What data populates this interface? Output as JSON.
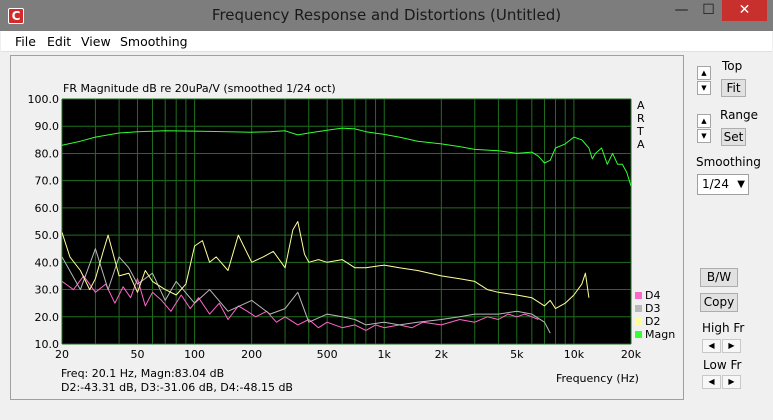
{
  "window": {
    "title": "Frequency Response and Distortions (Untitled)",
    "app_icon_glyph": "C",
    "controls": {
      "minimize": "—",
      "maximize": "☐",
      "close": "✕"
    }
  },
  "menu": {
    "file": "File",
    "edit": "Edit",
    "view": "View",
    "smoothing": "Smoothing"
  },
  "sidebar": {
    "top_label": "Top",
    "fit_button": "Fit",
    "range_label": "Range",
    "set_button": "Set",
    "smoothing_label": "Smoothing",
    "smoothing_value": "1/24",
    "bw_button": "B/W",
    "copy_button": "Copy",
    "high_fr_label": "High Fr",
    "low_fr_label": "Low Fr"
  },
  "plot": {
    "arta_watermark": [
      "A",
      "R",
      "T",
      "A"
    ],
    "readout": {
      "line1": "Freq: 20.1 Hz, Magn:83.04 dB",
      "line2": "D2:-43.31 dB, D3:-31.06 dB, D4:-48.15 dB"
    }
  },
  "chart_data": {
    "type": "line",
    "title": "FR Magnitude dB re 20uPa/V (smoothed 1/24 oct)",
    "xlabel": "Frequency (Hz)",
    "ylabel": "",
    "x_scale": "log",
    "xlim": [
      20,
      20000
    ],
    "ylim": [
      10,
      100
    ],
    "y_ticks": [
      "100.0",
      "90.0",
      "80.0",
      "70.0",
      "60.0",
      "50.0",
      "40.0",
      "30.0",
      "20.0",
      "10.0"
    ],
    "x_ticks": [
      {
        "value": 20,
        "label": "20"
      },
      {
        "value": 50,
        "label": "50"
      },
      {
        "value": 100,
        "label": "100"
      },
      {
        "value": 200,
        "label": "200"
      },
      {
        "value": 500,
        "label": "500"
      },
      {
        "value": 1000,
        "label": "1k"
      },
      {
        "value": 2000,
        "label": "2k"
      },
      {
        "value": 5000,
        "label": "5k"
      },
      {
        "value": 10000,
        "label": "10k"
      },
      {
        "value": 20000,
        "label": "20k"
      }
    ],
    "grid": true,
    "background": "#000000",
    "grid_color": "#1f6e1f",
    "legend_position": "right",
    "series": [
      {
        "name": "Magn",
        "color": "#33ff33",
        "x": [
          20,
          25,
          30,
          40,
          50,
          70,
          100,
          150,
          200,
          250,
          300,
          350,
          400,
          500,
          600,
          700,
          800,
          1000,
          1200,
          1500,
          2000,
          2500,
          3000,
          4000,
          5000,
          6000,
          6500,
          7000,
          7500,
          8000,
          9000,
          10000,
          11000,
          12000,
          12500,
          13000,
          14000,
          15000,
          16000,
          17000,
          18000,
          19000,
          20000
        ],
        "y": [
          83.0,
          84.5,
          86.0,
          87.5,
          88.0,
          88.3,
          88.2,
          88.0,
          87.8,
          88.0,
          88.3,
          86.8,
          87.5,
          88.5,
          89.3,
          89.0,
          88.0,
          87.0,
          86.0,
          84.5,
          83.5,
          82.5,
          81.5,
          81.0,
          80.0,
          80.5,
          79.0,
          76.5,
          77.5,
          82.0,
          83.5,
          86.0,
          85.0,
          82.0,
          78.0,
          80.0,
          82.0,
          76.0,
          80.0,
          76.0,
          76.0,
          73.0,
          68.0
        ]
      },
      {
        "name": "D2",
        "color": "#ffff99",
        "x": [
          20,
          22,
          25,
          28,
          30,
          33,
          35,
          40,
          45,
          50,
          55,
          60,
          70,
          80,
          90,
          100,
          110,
          120,
          130,
          150,
          170,
          200,
          230,
          260,
          300,
          330,
          350,
          380,
          400,
          450,
          500,
          600,
          700,
          800,
          1000,
          1200,
          1500,
          2000,
          2500,
          3000,
          3500,
          4000,
          5000,
          6000,
          7000,
          7500,
          8000,
          9000,
          10000,
          11000,
          11500,
          12000
        ],
        "y": [
          51,
          42,
          37,
          30,
          34,
          44,
          50,
          35,
          36,
          29,
          37,
          33,
          30,
          28,
          32,
          46,
          48,
          40,
          42,
          37,
          50,
          40,
          42,
          44,
          38,
          52,
          55,
          43,
          40,
          41,
          40,
          41,
          38,
          38,
          39,
          38,
          37,
          35,
          34,
          33,
          30,
          29,
          28,
          27,
          24,
          26,
          23,
          25,
          28,
          32,
          36,
          27
        ]
      },
      {
        "name": "D3",
        "color": "#b8b8b8",
        "x": [
          20,
          25,
          30,
          35,
          40,
          45,
          50,
          60,
          70,
          80,
          100,
          120,
          150,
          200,
          250,
          300,
          350,
          400,
          500,
          600,
          700,
          800,
          1000,
          1200,
          1500,
          2000,
          2500,
          3000,
          4000,
          5000,
          6000,
          7000,
          7500
        ],
        "y": [
          42,
          30,
          45,
          30,
          42,
          38,
          32,
          36,
          26,
          33,
          25,
          30,
          22,
          26,
          21,
          23,
          29,
          18,
          21,
          20,
          19,
          17,
          18,
          17,
          18,
          19,
          20,
          21,
          21,
          22,
          21,
          18,
          14
        ]
      },
      {
        "name": "D4",
        "color": "#ff66cc",
        "x": [
          20,
          23,
          26,
          30,
          34,
          38,
          42,
          46,
          50,
          55,
          60,
          67,
          75,
          85,
          95,
          105,
          120,
          135,
          150,
          170,
          190,
          210,
          240,
          270,
          300,
          350,
          400,
          450,
          500,
          600,
          700,
          800,
          900,
          1000,
          1200,
          1400,
          1600,
          2000,
          2500,
          3000,
          3500,
          4000,
          4500,
          5000,
          5500,
          6000,
          6500
        ],
        "y": [
          33,
          30,
          35,
          29,
          32,
          25,
          31,
          27,
          34,
          24,
          29,
          26,
          22,
          28,
          23,
          27,
          21,
          25,
          19,
          24,
          22,
          20,
          22,
          18,
          20,
          17,
          19,
          16,
          18,
          16,
          17,
          15,
          17,
          16,
          17,
          16,
          18,
          17,
          19,
          18,
          20,
          19,
          21,
          20,
          21,
          20,
          19
        ]
      }
    ],
    "legend": [
      "D4",
      "D3",
      "D2",
      "Magn"
    ]
  }
}
